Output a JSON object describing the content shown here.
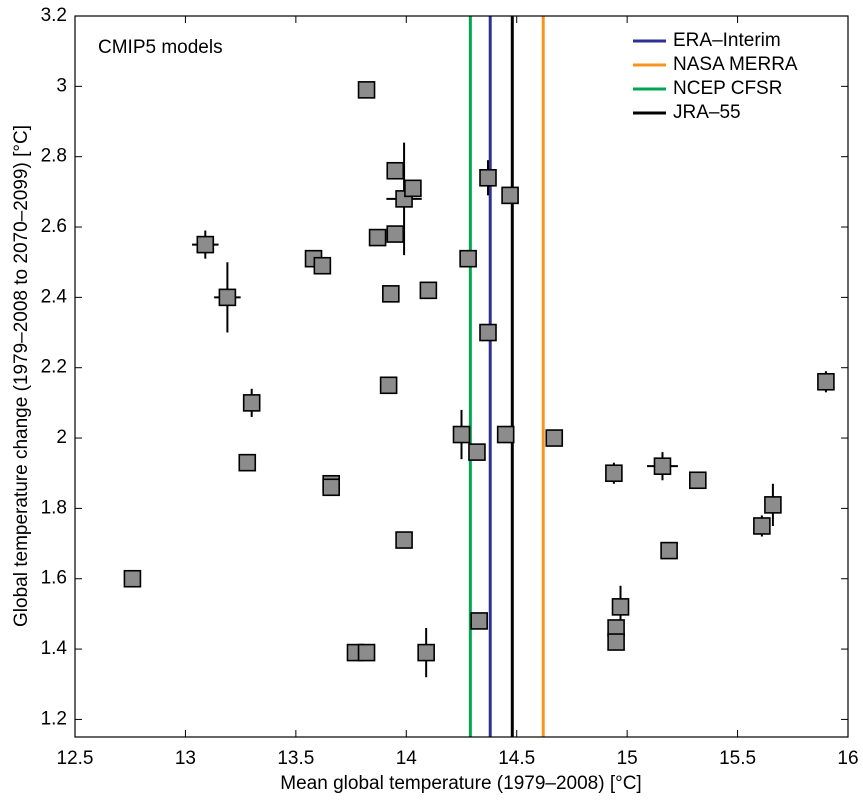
{
  "chart_data": {
    "type": "scatter",
    "annotation": "CMIP5 models",
    "xlabel": "Mean global temperature (1979–2008) [°C]",
    "ylabel": "Global temperature change (1979–2008 to 2070–2099) [°C]",
    "xlim": [
      12.5,
      16
    ],
    "ylim": [
      1.15,
      3.2
    ],
    "xticks": [
      12.5,
      13,
      13.5,
      14,
      14.5,
      15,
      15.5,
      16
    ],
    "yticks": [
      1.2,
      1.4,
      1.6,
      1.8,
      2,
      2.2,
      2.4,
      2.6,
      2.8,
      3,
      3.2
    ],
    "legend": "top-right",
    "series": [
      {
        "color": "#8c8c8c",
        "x": [
          12.76,
          13.09,
          13.19,
          13.3,
          13.28,
          13.58,
          13.62,
          13.66,
          13.66,
          13.77,
          13.82,
          13.82,
          13.87,
          13.93,
          13.92,
          13.95,
          13.95,
          13.99,
          14.03,
          13.99,
          14.1,
          14.09,
          14.28,
          14.25,
          14.32,
          14.33,
          14.37,
          14.37,
          14.45,
          14.47,
          14.67,
          14.94,
          14.95,
          14.95,
          14.97,
          15.16,
          15.19,
          15.32,
          15.61,
          15.66,
          15.9
        ],
        "values": [
          1.6,
          2.55,
          2.4,
          2.1,
          1.93,
          2.51,
          2.49,
          1.87,
          1.86,
          1.39,
          1.39,
          2.99,
          2.57,
          2.41,
          2.15,
          2.76,
          2.58,
          2.68,
          2.71,
          1.71,
          2.42,
          1.39,
          2.51,
          2.01,
          1.96,
          1.48,
          2.74,
          2.3,
          2.01,
          2.69,
          2.0,
          1.9,
          1.46,
          1.42,
          1.52,
          1.92,
          1.68,
          1.88,
          1.75,
          1.81,
          2.16
        ],
        "xerr": [
          null,
          0.06,
          0.06,
          null,
          null,
          null,
          null,
          null,
          null,
          null,
          null,
          null,
          null,
          null,
          null,
          null,
          null,
          0.08,
          null,
          null,
          null,
          0.03,
          null,
          null,
          null,
          null,
          null,
          null,
          null,
          null,
          null,
          null,
          null,
          null,
          null,
          0.07,
          null,
          null,
          null,
          null,
          null
        ],
        "yerr": [
          null,
          0.04,
          0.1,
          0.04,
          null,
          null,
          null,
          null,
          null,
          null,
          null,
          null,
          null,
          null,
          null,
          null,
          null,
          0.16,
          null,
          null,
          null,
          0.07,
          null,
          0.07,
          null,
          null,
          0.05,
          null,
          null,
          null,
          null,
          0.03,
          null,
          null,
          0.06,
          0.04,
          null,
          null,
          0.03,
          0.06,
          0.03
        ]
      }
    ],
    "vlines": [
      {
        "name": "ERA–Interim",
        "color": "#2e3192",
        "x": 14.38
      },
      {
        "name": "NASA MERRA",
        "color": "#f7941d",
        "x": 14.62
      },
      {
        "name": "NCEP CFSR",
        "color": "#00a651",
        "x": 14.29
      },
      {
        "name": "JRA–55",
        "color": "#000000",
        "x": 14.48
      }
    ]
  }
}
